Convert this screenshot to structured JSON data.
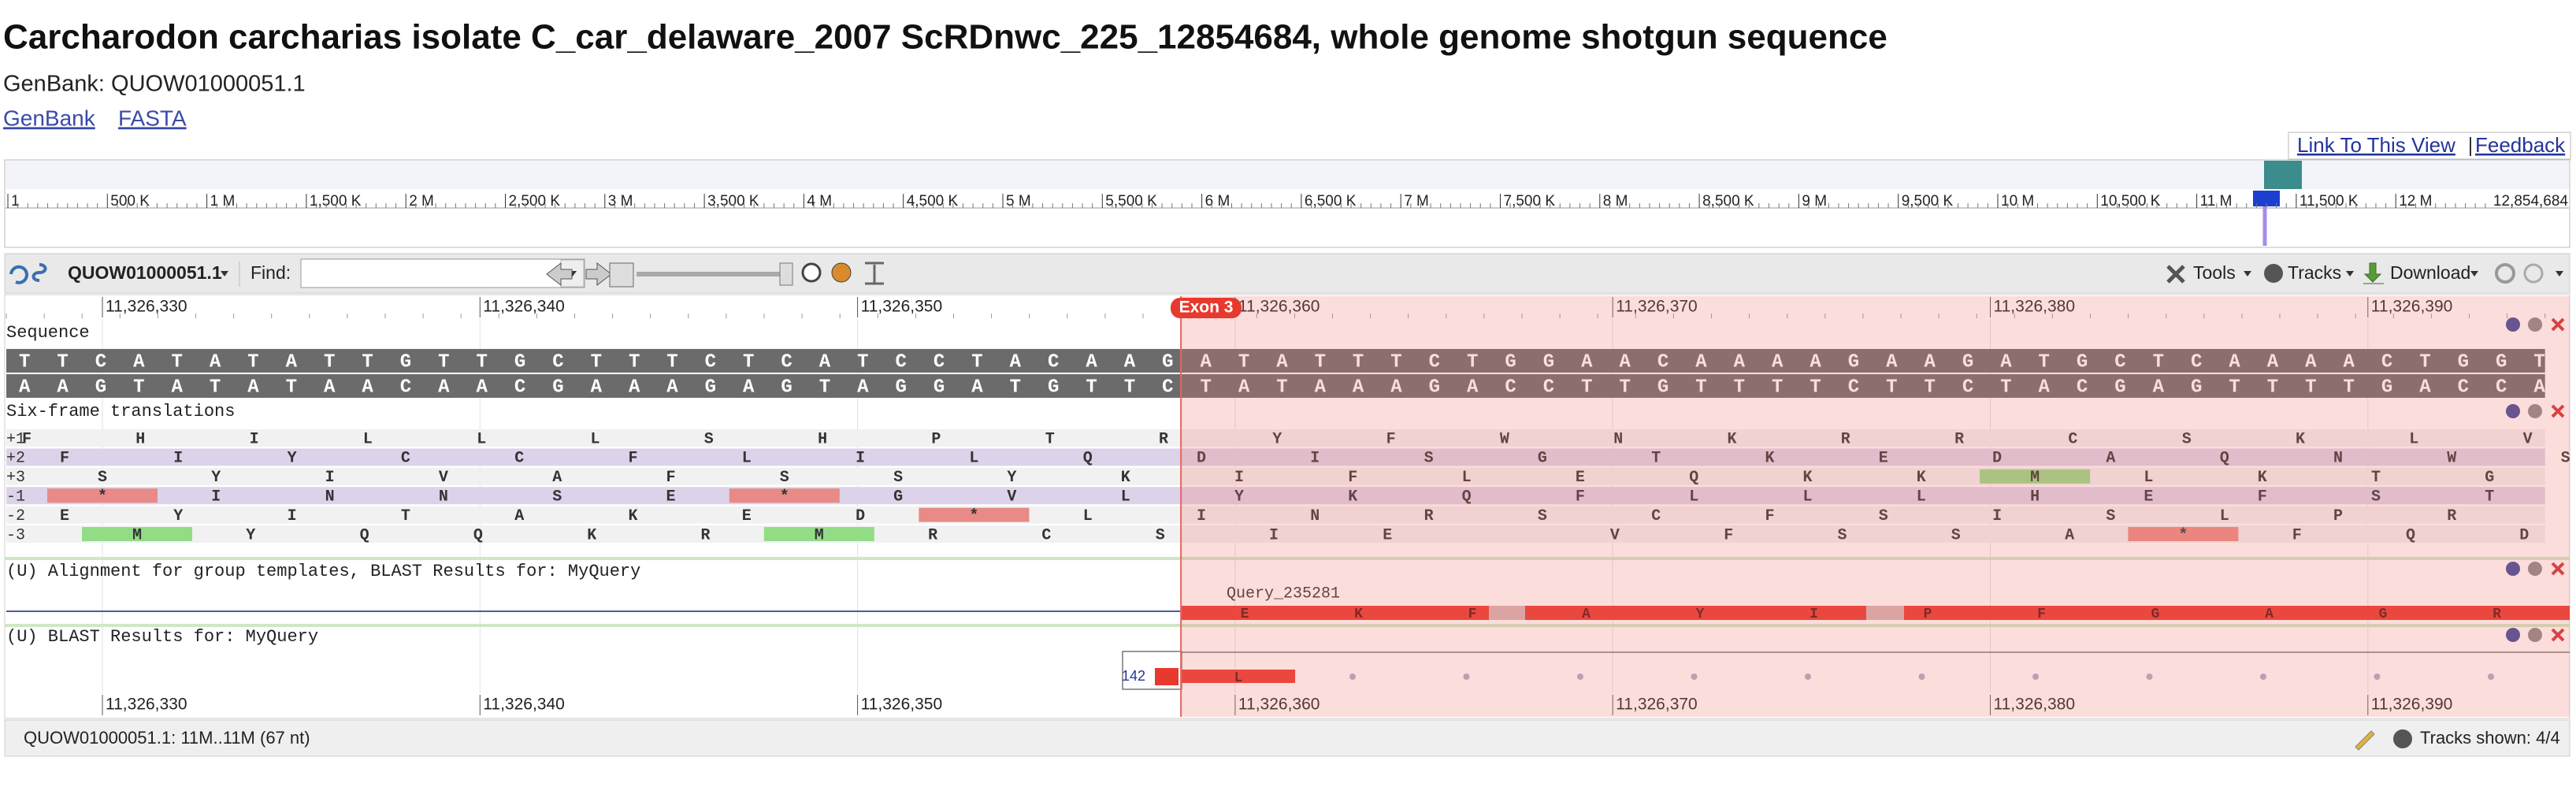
{
  "header": {
    "title": "Carcharodon carcharias isolate C_car_delaware_2007 ScRDnwc_225_12854684, whole genome shotgun sequence",
    "accession": "GenBank: QUOW01000051.1",
    "links": [
      "GenBank",
      "FASTA"
    ]
  },
  "viewer": {
    "top_links": [
      "Link To This View",
      "Feedback"
    ],
    "overview_ticks": [
      "1",
      "500 K",
      "1 M",
      "1,500 K",
      "2 M",
      "2,500 K",
      "3 M",
      "3,500 K",
      "4 M",
      "4,500 K",
      "5 M",
      "5,500 K",
      "6 M",
      "6,500 K",
      "7 M",
      "7,500 K",
      "8 M",
      "8,500 K",
      "9 M",
      "9,500 K",
      "10 M",
      "10,500 K",
      "11 M",
      "11,500 K",
      "12 M",
      "12,854,684"
    ],
    "toolbar": {
      "sequence_id": "QUOW01000051.1",
      "find_label": "Find:",
      "tools": "Tools",
      "tracks": "Tracks",
      "download": "Download"
    },
    "ruler_ticks": [
      "11,326,330",
      "11,326,340",
      "11,326,350",
      "11,326,360",
      "11,326,370",
      "11,326,380",
      "11,326,390"
    ],
    "exon_label": "Exon 3",
    "sequence_track": {
      "title": "Sequence",
      "forward": "TTCATATATTGTTGCTTTCTCATCCTACAAGATATTTCTGGAACAAAAGAAGATGCTCAAAACTGGT",
      "reverse": "AAGTATATAACAACGAAAGAGTAGGATGTTCTATAAAGACCTTGTTTTCTTCTACGAGTTTTGACCA"
    },
    "translation_track": {
      "title": "Six-frame translations",
      "frames": [
        {
          "label": "+1",
          "residues": [
            "F",
            "H",
            "I",
            "L",
            "L",
            "L",
            "S",
            "H",
            "P",
            "T",
            "R",
            "Y",
            "F",
            "W",
            "N",
            "K",
            "R",
            "R",
            "C",
            "S",
            "K",
            "L",
            "V"
          ]
        },
        {
          "label": "+2",
          "residues": [
            "F",
            "I",
            "Y",
            "C",
            "C",
            "F",
            "L",
            "I",
            "L",
            "Q",
            "D",
            "I",
            "S",
            "G",
            "T",
            "K",
            "E",
            "D",
            "A",
            "Q",
            "N",
            "W",
            "S"
          ]
        },
        {
          "label": "+3",
          "residues": [
            "S",
            "Y",
            "I",
            "V",
            "A",
            "F",
            "S",
            "S",
            "Y",
            "K",
            "I",
            "F",
            "L",
            "E",
            "Q",
            "K",
            "K",
            "M",
            "L",
            "K",
            "T",
            "G"
          ]
        },
        {
          "label": "-1",
          "residues": [
            "*",
            "I",
            "N",
            "N",
            "S",
            "E",
            "*",
            "G",
            "V",
            "L",
            "Y",
            "K",
            "Q",
            "F",
            "L",
            "L",
            "L",
            "H",
            "E",
            "F",
            "S",
            "T"
          ]
        },
        {
          "label": "-2",
          "residues": [
            "E",
            "Y",
            "I",
            "T",
            "A",
            "K",
            "E",
            "D",
            "*",
            "L",
            "I",
            "N",
            "R",
            "S",
            "C",
            "F",
            "S",
            "I",
            "S",
            "L",
            "P",
            "R"
          ]
        },
        {
          "label": "-3",
          "residues": [
            "M",
            "Y",
            "Q",
            "Q",
            "K",
            "R",
            "M",
            "R",
            "C",
            "S",
            "I",
            "E",
            null,
            "V",
            "F",
            "S",
            "S",
            "A",
            "*",
            "F",
            "Q",
            "D"
          ]
        }
      ]
    },
    "alignment_track": {
      "title": "(U) Alignment for group templates, BLAST Results for: MyQuery",
      "feature_label": "Query_235281",
      "residues": [
        "E",
        "K",
        "F",
        "A",
        "Y",
        "I",
        "P",
        "F",
        "G",
        "A",
        "G",
        "R"
      ]
    },
    "blast_track": {
      "title": "(U) BLAST Results for: MyQuery",
      "score": "142",
      "residues": [
        "L"
      ]
    },
    "status": "QUOW01000051.1: 11M..11M (67 nt)",
    "tracks_shown": "Tracks shown: 4/4"
  }
}
